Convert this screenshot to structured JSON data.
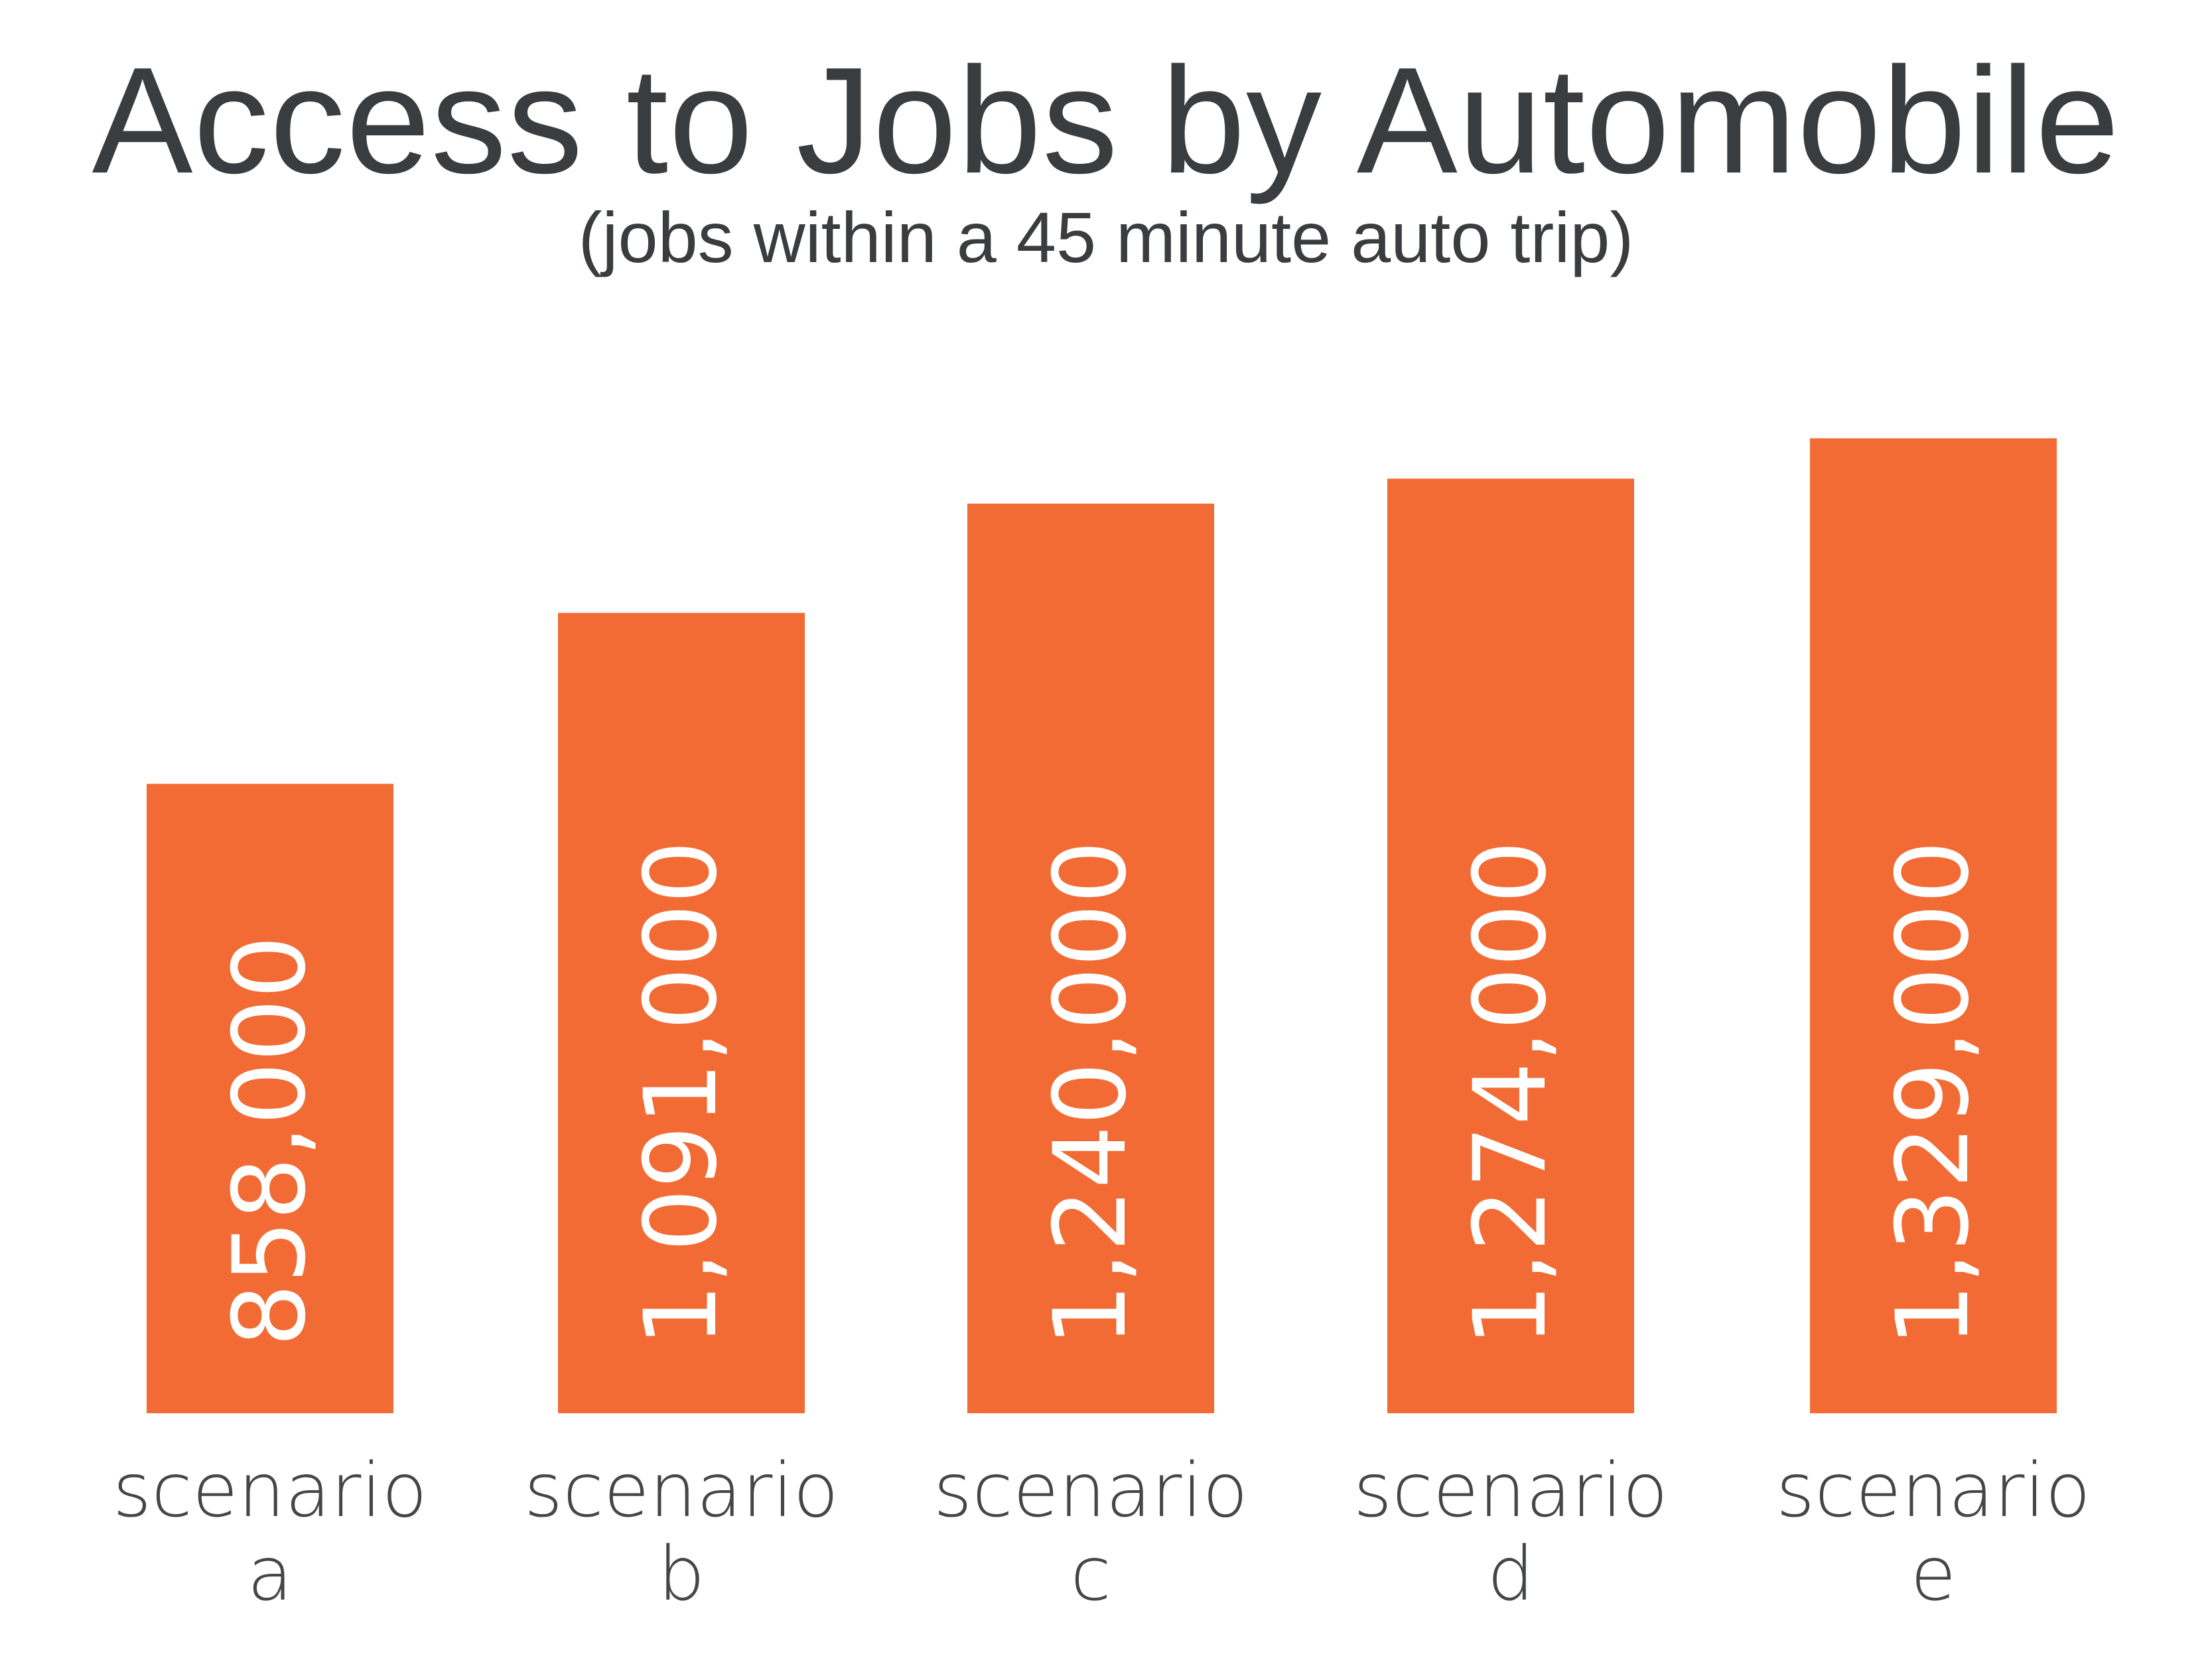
{
  "title": "Access to Jobs by Automobile",
  "subtitle": "(jobs within a 45 minute auto trip)",
  "colors": {
    "bar": "#f26b34",
    "text": "#3a3d3f",
    "bar_label": "#ffffff"
  },
  "chart_data": {
    "type": "bar",
    "title": "Access to Jobs by Automobile",
    "subtitle": "(jobs within a 45 minute auto trip)",
    "categories": [
      [
        "scenario",
        "a"
      ],
      [
        "scenario",
        "b"
      ],
      [
        "scenario",
        "c"
      ],
      [
        "scenario",
        "d"
      ],
      [
        "scenario",
        "e"
      ]
    ],
    "values": [
      858000,
      1091000,
      1240000,
      1274000,
      1329000
    ],
    "value_labels": [
      "858,000",
      "1,091,000",
      "1,240,000",
      "1,274,000",
      "1,329,000"
    ],
    "ylim": [
      0,
      1420000
    ],
    "grid": false,
    "legend": "none"
  }
}
